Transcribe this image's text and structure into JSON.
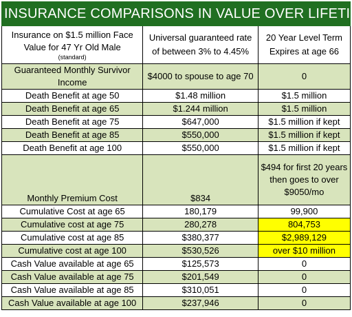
{
  "title": "INSURANCE COMPARISONS IN VALUE OVER LIFETIME",
  "header": {
    "col1_line1": "Insurance on $1.5 million Face",
    "col1_line2": "Value for 47 Yr Old Male",
    "col1_note": "(standard)",
    "col2": "Universal guaranteed rate of between 3% to 4.45%",
    "col3": "20 Year Level Term Expires at age 66"
  },
  "rows": [
    {
      "label": "Guaranteed Monthly Survivor Income",
      "universal": "$4000 to spouse to age 70",
      "term": "0",
      "shade": "green",
      "highlight_term": false
    },
    {
      "label": "Death Benefit at age 50",
      "universal": "$1.48 million",
      "term": "$1.5 million",
      "shade": "white",
      "highlight_term": false
    },
    {
      "label": "Death Benefit at age 65",
      "universal": "$1.244 million",
      "term": "$1.5 million",
      "shade": "green",
      "highlight_term": false
    },
    {
      "label": "Death Benefit at age 75",
      "universal": "$647,000",
      "term": "$1.5 million if kept",
      "shade": "white",
      "highlight_term": false
    },
    {
      "label": "Death Benefit at age 85",
      "universal": "$550,000",
      "term": "$1.5 million if kept",
      "shade": "green",
      "highlight_term": false
    },
    {
      "label": "Death Benefit at age 100",
      "universal": "$550,000",
      "term": "$1.5 million if kept",
      "shade": "white",
      "highlight_term": false
    },
    {
      "label": "Monthly Premium Cost",
      "universal": "$834",
      "term": "$494 for first 20 years then goes to over $9050/mo",
      "shade": "green",
      "highlight_term": false
    },
    {
      "label": "Cumulative Cost at age 65",
      "universal": "180,179",
      "term": "99,900",
      "shade": "white",
      "highlight_term": false
    },
    {
      "label": "Cumulative cost at age 75",
      "universal": "280,278",
      "term": "804,753",
      "shade": "green",
      "highlight_term": true
    },
    {
      "label": "Cumulative cost at age 85",
      "universal": "$380,377",
      "term": "$2,989,129",
      "shade": "white",
      "highlight_term": true
    },
    {
      "label": "Cumulative cost at age 100",
      "universal": "$530,526",
      "term": "over $10 million",
      "shade": "green",
      "highlight_term": true
    },
    {
      "label": "Cash Value available at age 65",
      "universal": "$125,573",
      "term": "0",
      "shade": "white",
      "highlight_term": false
    },
    {
      "label": "Cash Value available at age 75",
      "universal": "$201,549",
      "term": "0",
      "shade": "green",
      "highlight_term": false
    },
    {
      "label": "Cash Value available at age 85",
      "universal": "$310,051",
      "term": "0",
      "shade": "white",
      "highlight_term": false
    },
    {
      "label": "Cash Value available at age 100",
      "universal": "$237,946",
      "term": "0",
      "shade": "green",
      "highlight_term": false
    }
  ],
  "colors": {
    "title_bg": "#206f21",
    "green_row": "#d8e4bc",
    "highlight": "#ffff00"
  }
}
